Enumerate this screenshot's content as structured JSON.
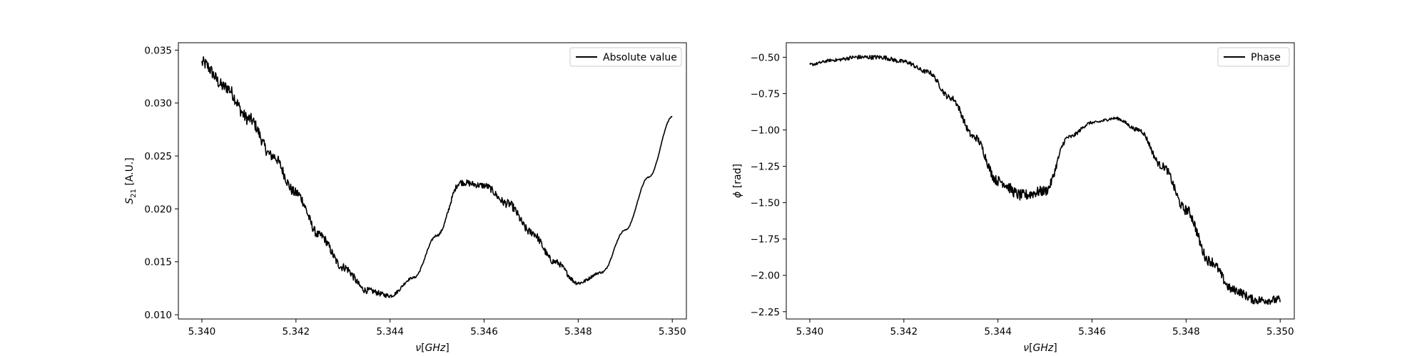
{
  "chart_data": [
    {
      "type": "line",
      "xlabel": "ν[GHz]",
      "ylabel": "S21 [A.U.]",
      "ylabel_main": "S",
      "ylabel_sub": "21",
      "ylabel_unit": " [A.U.]",
      "xlim": [
        5.3395,
        5.3503
      ],
      "ylim": [
        0.0096,
        0.0357
      ],
      "xticks": [
        5.34,
        5.342,
        5.344,
        5.346,
        5.348,
        5.35
      ],
      "xtick_labels": [
        "5.340",
        "5.342",
        "5.344",
        "5.346",
        "5.348",
        "5.350"
      ],
      "yticks": [
        0.01,
        0.015,
        0.02,
        0.025,
        0.03,
        0.035
      ],
      "ytick_labels": [
        "0.010",
        "0.015",
        "0.020",
        "0.025",
        "0.030",
        "0.035"
      ],
      "grid": false,
      "legend_position": "top-right",
      "series": [
        {
          "name": "Absolute value",
          "color": "#000000",
          "x": [
            5.34,
            5.3405,
            5.341,
            5.3415,
            5.342,
            5.3425,
            5.343,
            5.3435,
            5.344,
            5.3445,
            5.345,
            5.3455,
            5.346,
            5.3465,
            5.347,
            5.3475,
            5.348,
            5.3485,
            5.349,
            5.3495,
            5.35
          ],
          "y": [
            0.0338,
            0.0315,
            0.0285,
            0.025,
            0.0215,
            0.0175,
            0.0145,
            0.0123,
            0.0118,
            0.0135,
            0.0175,
            0.0225,
            0.0222,
            0.0205,
            0.0178,
            0.015,
            0.013,
            0.014,
            0.018,
            0.023,
            0.0287
          ],
          "noise": [
            0.0006,
            0.0006,
            0.0006,
            0.0005,
            0.0005,
            0.0004,
            0.0004,
            0.0003,
            0.0002,
            0.0001,
            0.0001,
            0.0003,
            0.0003,
            0.0004,
            0.0004,
            0.0003,
            0.0002,
            0.0001,
            5e-05,
            5e-05,
            5e-05
          ]
        }
      ]
    },
    {
      "type": "line",
      "xlabel": "ν[GHz]",
      "ylabel": "ϕ [rad]",
      "ylabel_main": "ϕ",
      "ylabel_sub": "",
      "ylabel_unit": " [rad]",
      "xlim": [
        5.3395,
        5.3503
      ],
      "ylim": [
        -2.3,
        -0.4
      ],
      "xticks": [
        5.34,
        5.342,
        5.344,
        5.346,
        5.348,
        5.35
      ],
      "xtick_labels": [
        "5.340",
        "5.342",
        "5.344",
        "5.346",
        "5.348",
        "5.350"
      ],
      "yticks": [
        -0.5,
        -0.75,
        -1.0,
        -1.25,
        -1.5,
        -1.75,
        -2.0,
        -2.25
      ],
      "ytick_labels": [
        "−0.50",
        "−0.75",
        "−1.00",
        "−1.25",
        "−1.50",
        "−1.75",
        "−2.00",
        "−2.25"
      ],
      "grid": false,
      "legend_position": "top-right",
      "series": [
        {
          "name": "Phase",
          "color": "#000000",
          "x": [
            5.34,
            5.3405,
            5.341,
            5.3415,
            5.342,
            5.3425,
            5.343,
            5.3435,
            5.344,
            5.3445,
            5.345,
            5.3455,
            5.346,
            5.3465,
            5.347,
            5.3475,
            5.348,
            5.3485,
            5.349,
            5.3495,
            5.35
          ],
          "y": [
            -0.55,
            -0.52,
            -0.5,
            -0.5,
            -0.53,
            -0.6,
            -0.78,
            -1.05,
            -1.35,
            -1.45,
            -1.42,
            -1.05,
            -0.95,
            -0.92,
            -1.0,
            -1.25,
            -1.55,
            -1.9,
            -2.1,
            -2.17,
            -2.17
          ],
          "noise": [
            0.01,
            0.01,
            0.015,
            0.015,
            0.015,
            0.015,
            0.02,
            0.025,
            0.035,
            0.04,
            0.035,
            0.015,
            0.01,
            0.01,
            0.015,
            0.025,
            0.035,
            0.035,
            0.03,
            0.03,
            0.03
          ]
        }
      ]
    }
  ]
}
